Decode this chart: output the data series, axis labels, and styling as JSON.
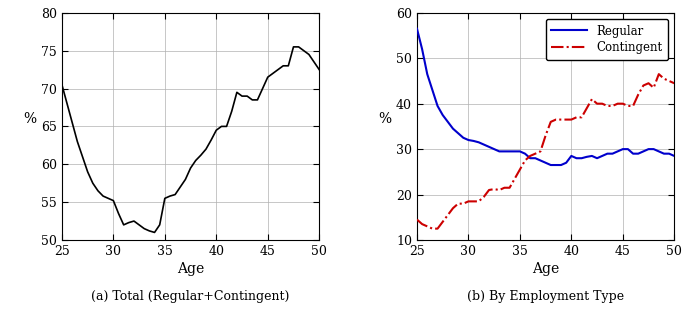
{
  "left_title": "(a) Total (Regular+Contingent)",
  "right_title": "(b) By Employment Type",
  "ylabel": "%",
  "xlabel": "Age",
  "left_ylim": [
    50,
    80
  ],
  "right_ylim": [
    10,
    60
  ],
  "left_yticks": [
    50,
    55,
    60,
    65,
    70,
    75,
    80
  ],
  "right_yticks": [
    10,
    20,
    30,
    40,
    50,
    60
  ],
  "xlim": [
    25,
    50
  ],
  "xticks": [
    25,
    30,
    35,
    40,
    45,
    50
  ],
  "left_x": [
    25,
    25.5,
    26,
    26.5,
    27,
    27.5,
    28,
    28.5,
    29,
    29.5,
    30,
    30.5,
    31,
    31.5,
    32,
    32.5,
    33,
    33.5,
    34,
    34.5,
    35,
    35.5,
    36,
    36.5,
    37,
    37.5,
    38,
    38.5,
    39,
    39.5,
    40,
    40.5,
    41,
    41.5,
    42,
    42.5,
    43,
    43.5,
    44,
    44.5,
    45,
    45.5,
    46,
    46.5,
    47,
    47.5,
    48,
    48.5,
    49,
    49.5,
    50
  ],
  "left_y": [
    70.5,
    68.0,
    65.5,
    63.0,
    61.0,
    59.0,
    57.5,
    56.5,
    55.8,
    55.5,
    55.2,
    53.5,
    52.0,
    52.3,
    52.5,
    52.0,
    51.5,
    51.2,
    51.0,
    52.0,
    55.5,
    55.8,
    56.0,
    57.0,
    58.0,
    59.5,
    60.5,
    61.2,
    62.0,
    63.2,
    64.5,
    65.0,
    65.0,
    67.0,
    69.5,
    69.0,
    69.0,
    68.5,
    68.5,
    70.0,
    71.5,
    72.0,
    72.5,
    73.0,
    73.0,
    75.5,
    75.5,
    75.0,
    74.5,
    73.5,
    72.5
  ],
  "regular_x": [
    25,
    25.5,
    26,
    26.5,
    27,
    27.5,
    28,
    28.5,
    29,
    29.5,
    30,
    30.5,
    31,
    31.5,
    32,
    32.5,
    33,
    33.5,
    34,
    34.5,
    35,
    35.5,
    36,
    36.5,
    37,
    37.5,
    38,
    38.5,
    39,
    39.5,
    40,
    40.5,
    41,
    41.5,
    42,
    42.5,
    43,
    43.5,
    44,
    44.5,
    45,
    45.5,
    46,
    46.5,
    47,
    47.5,
    48,
    48.5,
    49,
    49.5,
    50
  ],
  "regular_y": [
    56.5,
    52.0,
    46.5,
    43.0,
    39.5,
    37.5,
    36.0,
    34.5,
    33.5,
    32.5,
    32.0,
    31.8,
    31.5,
    31.0,
    30.5,
    30.0,
    29.5,
    29.5,
    29.5,
    29.5,
    29.5,
    29.0,
    28.0,
    28.0,
    27.5,
    27.0,
    26.5,
    26.5,
    26.5,
    27.0,
    28.5,
    28.0,
    28.0,
    28.3,
    28.5,
    28.0,
    28.5,
    29.0,
    29.0,
    29.5,
    30.0,
    30.0,
    29.0,
    29.0,
    29.5,
    30.0,
    30.0,
    29.5,
    29.0,
    29.0,
    28.5
  ],
  "contingent_x": [
    25,
    25.5,
    26,
    26.5,
    27,
    27.5,
    28,
    28.5,
    29,
    29.5,
    30,
    30.5,
    31,
    31.5,
    32,
    32.5,
    33,
    33.5,
    34,
    34.5,
    35,
    35.5,
    36,
    36.5,
    37,
    37.5,
    38,
    38.5,
    39,
    39.5,
    40,
    40.5,
    41,
    41.5,
    42,
    42.5,
    43,
    43.5,
    44,
    44.5,
    45,
    45.5,
    46,
    46.5,
    47,
    47.5,
    48,
    48.5,
    49,
    49.5,
    50
  ],
  "contingent_y": [
    14.5,
    13.5,
    13.0,
    12.5,
    12.5,
    14.0,
    15.5,
    17.0,
    18.0,
    18.0,
    18.5,
    18.5,
    18.5,
    19.5,
    21.0,
    21.2,
    21.0,
    21.5,
    21.5,
    23.5,
    25.5,
    27.5,
    28.5,
    29.0,
    29.5,
    33.0,
    36.0,
    36.5,
    36.5,
    36.5,
    36.5,
    37.0,
    37.0,
    39.0,
    41.0,
    40.0,
    40.0,
    39.5,
    39.5,
    40.0,
    40.0,
    39.5,
    39.5,
    42.0,
    44.0,
    44.5,
    43.5,
    46.5,
    45.5,
    45.0,
    44.5
  ],
  "regular_color": "#0000cc",
  "contingent_color": "#cc0000",
  "line_color": "#000000",
  "bg_color": "#ffffff",
  "grid_color": "#b0b0b0"
}
